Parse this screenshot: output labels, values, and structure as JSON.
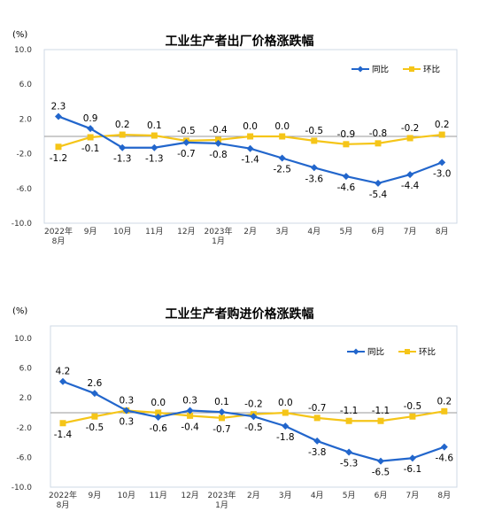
{
  "chart_data": [
    {
      "type": "line",
      "title": "工业生产者出厂价格涨跌幅",
      "unit": "(%)",
      "categories": [
        "2022年\n8月",
        "9月",
        "10月",
        "11月",
        "12月",
        "2023年\n1月",
        "2月",
        "3月",
        "4月",
        "5月",
        "6月",
        "7月",
        "8月"
      ],
      "ylim": [
        -10,
        10
      ],
      "yticks": [
        10.0,
        6.0,
        2.0,
        -2.0,
        -6.0,
        -10.0
      ],
      "ytick_labels": [
        "10.0",
        "6.0",
        "2.0",
        "-2.0",
        "-6.0",
        "-10.0"
      ],
      "legend_position": "top-right",
      "series": [
        {
          "name": "同比",
          "color": "#2266cc",
          "marker": "diamond",
          "values": [
            2.3,
            0.9,
            -1.3,
            -1.3,
            -0.7,
            -0.8,
            -1.4,
            -2.5,
            -3.6,
            -4.6,
            -5.4,
            -4.4,
            -3.0
          ],
          "labels": [
            "2.3",
            "0.9",
            "-1.3",
            "-1.3",
            "-0.7",
            "-0.8",
            "-1.4",
            "-2.5",
            "-3.6",
            "-4.6",
            "-5.4",
            "-4.4",
            "-3.0"
          ]
        },
        {
          "name": "环比",
          "color": "#f5c518",
          "marker": "square",
          "values": [
            -1.2,
            -0.1,
            0.2,
            0.1,
            -0.5,
            -0.4,
            0.0,
            0.0,
            -0.5,
            -0.9,
            -0.8,
            -0.2,
            0.2
          ],
          "labels": [
            "-1.2",
            "-0.1",
            "0.2",
            "0.1",
            "-0.5",
            "-0.4",
            "0.0",
            "0.0",
            "-0.5",
            "-0.9",
            "-0.8",
            "-0.2",
            "0.2"
          ]
        }
      ]
    },
    {
      "type": "line",
      "title": "工业生产者购进价格涨跌幅",
      "unit": "(%)",
      "categories": [
        "2022年\n8月",
        "9月",
        "10月",
        "11月",
        "12月",
        "2023年\n1月",
        "2月",
        "3月",
        "4月",
        "5月",
        "6月",
        "7月",
        "8月"
      ],
      "ylim": [
        -10,
        10
      ],
      "yticks": [
        10.0,
        6.0,
        2.0,
        -2.0,
        -6.0,
        -10.0
      ],
      "ytick_labels": [
        "10.0",
        "6.0",
        "2.0",
        "-2.0",
        "-6.0",
        "-10.0"
      ],
      "legend_position": "top-right",
      "series": [
        {
          "name": "同比",
          "color": "#2266cc",
          "marker": "diamond",
          "values": [
            4.2,
            2.6,
            0.3,
            -0.6,
            0.3,
            0.1,
            -0.5,
            -1.8,
            -3.8,
            -5.3,
            -6.5,
            -6.1,
            -4.6
          ],
          "labels": [
            "4.2",
            "2.6",
            "0.3",
            "-0.6",
            "0.3",
            "0.1",
            "-0.5",
            "-1.8",
            "-3.8",
            "-5.3",
            "-6.5",
            "-6.1",
            "-4.6"
          ]
        },
        {
          "name": "环比",
          "color": "#f5c518",
          "marker": "square",
          "values": [
            -1.4,
            -0.5,
            0.3,
            0.0,
            -0.4,
            -0.7,
            -0.2,
            0.0,
            -0.7,
            -1.1,
            -1.1,
            -0.5,
            0.2
          ],
          "labels": [
            "-1.4",
            "-0.5",
            "0.3",
            "0.0",
            "-0.4",
            "-0.7",
            "-0.2",
            "0.0",
            "-0.7",
            "-1.1",
            "-1.1",
            "-0.5",
            "0.2"
          ]
        }
      ]
    }
  ]
}
